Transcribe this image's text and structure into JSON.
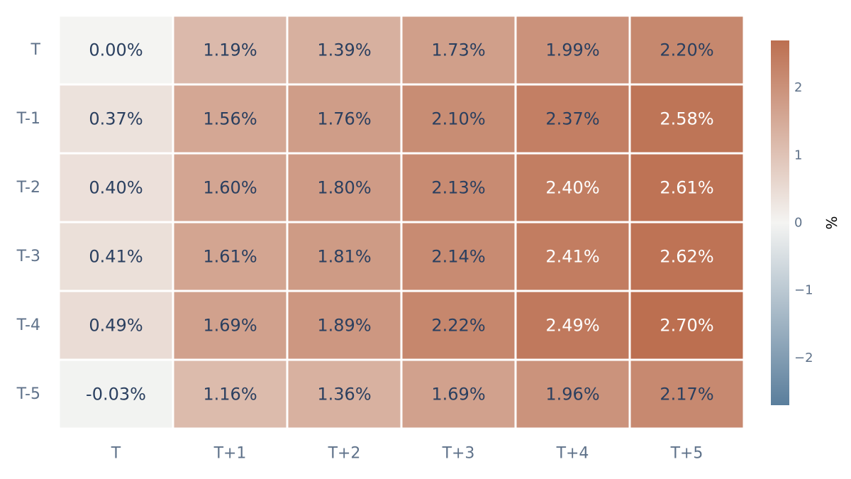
{
  "chart_data": {
    "type": "heatmap",
    "x_categories": [
      "T",
      "T+1",
      "T+2",
      "T+3",
      "T+4",
      "T+5"
    ],
    "y_categories": [
      "T",
      "T-1",
      "T-2",
      "T-3",
      "T-4",
      "T-5"
    ],
    "values": [
      [
        0.0,
        1.19,
        1.39,
        1.73,
        1.99,
        2.2
      ],
      [
        0.37,
        1.56,
        1.76,
        2.1,
        2.37,
        2.58
      ],
      [
        0.4,
        1.6,
        1.8,
        2.13,
        2.4,
        2.61
      ],
      [
        0.41,
        1.61,
        1.81,
        2.14,
        2.41,
        2.62
      ],
      [
        0.49,
        1.69,
        1.89,
        2.22,
        2.49,
        2.7
      ],
      [
        -0.03,
        1.16,
        1.36,
        1.69,
        1.96,
        2.17
      ]
    ],
    "cell_labels": [
      [
        "0.00%",
        "1.19%",
        "1.39%",
        "1.73%",
        "1.99%",
        "2.20%"
      ],
      [
        "0.37%",
        "1.56%",
        "1.76%",
        "2.10%",
        "2.37%",
        "2.58%"
      ],
      [
        "0.40%",
        "1.60%",
        "1.80%",
        "2.13%",
        "2.40%",
        "2.61%"
      ],
      [
        "0.41%",
        "1.61%",
        "1.81%",
        "2.14%",
        "2.41%",
        "2.62%"
      ],
      [
        "0.49%",
        "1.69%",
        "1.89%",
        "2.22%",
        "2.49%",
        "2.70%"
      ],
      [
        "-0.03%",
        "1.16%",
        "1.36%",
        "1.69%",
        "1.96%",
        "2.17%"
      ]
    ],
    "colorbar": {
      "title": "%",
      "range": [
        -2.7,
        2.7
      ],
      "ticks": [
        2,
        1,
        0,
        -1,
        -2
      ],
      "tick_labels": [
        "2",
        "1",
        "0",
        "−1",
        "−2"
      ]
    },
    "colorscale": {
      "low": "#5a7e9c",
      "mid": "#f4f4f2",
      "high": "#bc6f50"
    },
    "text_colors": {
      "dark": "#2a3f5f",
      "light": "#ffffff"
    },
    "grid": false
  }
}
